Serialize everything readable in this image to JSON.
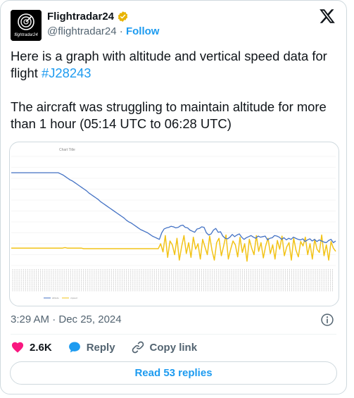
{
  "account": {
    "name": "Flightradar24",
    "handle": "@flightradar24",
    "separator": "·",
    "follow_label": "Follow",
    "avatar_text": "flightradar24"
  },
  "tweet": {
    "line1": "Here is a graph with altitude and vertical speed data for flight ",
    "hashtag": "#J28243",
    "paragraph2": "The aircraft was struggling to maintain altitude for more than 1 hour (05:14 UTC to 06:28 UTC)"
  },
  "timestamp": "3:29 AM · Dec 25, 2024",
  "actions": {
    "likes_count": "2.6K",
    "reply_label": "Reply",
    "copy_link_label": "Copy link"
  },
  "read_replies_label": "Read 53 replies",
  "colors": {
    "altitude": "#4472c4",
    "vspeed": "#f2c318",
    "link": "#1d9bf0",
    "like": "#f91880"
  },
  "chart_data": {
    "type": "line",
    "title": "Chart Title",
    "legend": [
      "altitude",
      "vspeed"
    ],
    "legend_position": "bottom",
    "grid": true,
    "series": [
      {
        "name": "altitude",
        "values": [
          70,
          70,
          70,
          70,
          70,
          70,
          70,
          70,
          70,
          70,
          70,
          70,
          70,
          70,
          70,
          70,
          70,
          70,
          70,
          70,
          70,
          68,
          66,
          63,
          60,
          57,
          55,
          52,
          49,
          46,
          43,
          40,
          37,
          33,
          30,
          27,
          24,
          21,
          17,
          14,
          11,
          8,
          5,
          2,
          -1,
          -4,
          -7,
          -10,
          -13,
          -17,
          -20,
          -22,
          -25,
          -28,
          -31,
          -34,
          -36,
          -38,
          -40,
          -43,
          -46,
          -48,
          -50,
          -52,
          -40,
          -33,
          -31,
          -30,
          -28,
          -29,
          -31,
          -30,
          -27,
          -26,
          -30,
          -31,
          -35,
          -37,
          -39,
          -33,
          -32,
          -29,
          -30,
          -40,
          -44,
          -42,
          -35,
          -32,
          -39,
          -38,
          -46,
          -50,
          -51,
          -48,
          -43,
          -47,
          -44,
          -42,
          -48,
          -52,
          -49,
          -47,
          -45,
          -48,
          -50,
          -46,
          -48,
          -47,
          -46,
          -53,
          -50,
          -49,
          -45,
          -46,
          -48,
          -52,
          -49,
          -53,
          -50,
          -52,
          -48,
          -50,
          -52,
          -53,
          -51,
          -56,
          -53,
          -51,
          -55,
          -52,
          -56,
          -53,
          -55,
          -57,
          -58,
          -54,
          -52,
          -58,
          -55
        ]
      },
      {
        "name": "vspeed",
        "values": [
          -68,
          -68,
          -68,
          -68,
          -68,
          -68,
          -68,
          -68,
          -68,
          -68,
          -68,
          -68,
          -68,
          -68,
          -68,
          -68,
          -68,
          -68,
          -68,
          -68,
          -68,
          -68,
          -68,
          -67,
          -68,
          -68,
          -68,
          -68,
          -68,
          -68,
          -68,
          -69,
          -69,
          -69,
          -69,
          -69,
          -69,
          -69,
          -69,
          -69,
          -69,
          -69,
          -69,
          -69,
          -69,
          -69,
          -69,
          -69,
          -69,
          -69,
          -69,
          -69,
          -69,
          -69,
          -69,
          -69,
          -69,
          -69,
          -69,
          -69,
          -69,
          -69,
          -69,
          -69,
          -60,
          -75,
          -45,
          -85,
          -55,
          -62,
          -80,
          -50,
          -90,
          -65,
          -45,
          -78,
          -58,
          -85,
          -48,
          -70,
          -60,
          -88,
          -52,
          -66,
          -80,
          -46,
          -72,
          -90,
          -58,
          -50,
          -82,
          -64,
          -44,
          -88,
          -70,
          -55,
          -62,
          -84,
          -48,
          -76,
          -60,
          -92,
          -52,
          -68,
          -80,
          -45,
          -74,
          -58,
          -86,
          -64,
          -50,
          -78,
          -62,
          -88,
          -54,
          -70,
          -46,
          -82,
          -66,
          -58,
          -90,
          -50,
          -72,
          -84,
          -56,
          -64,
          -48,
          -80,
          -60,
          -88,
          -52,
          -70,
          -76,
          -44,
          -82,
          -62,
          -90,
          -56,
          -68,
          -74
        ]
      }
    ]
  }
}
